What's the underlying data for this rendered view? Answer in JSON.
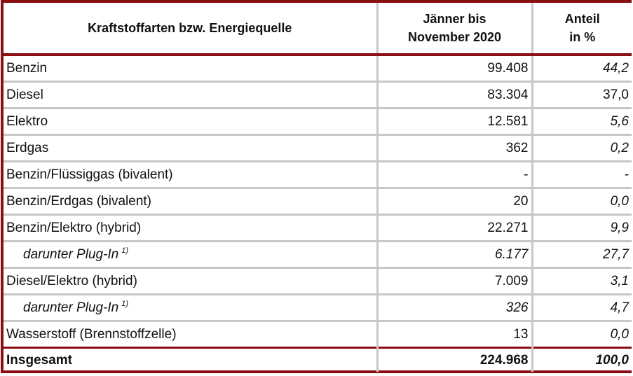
{
  "header": {
    "col1": "Kraftstoffarten bzw. Energiequelle",
    "col2_line1": "Jänner bis",
    "col2_line2": "November 2020",
    "col3_line1": "Anteil",
    "col3_line2": "in %"
  },
  "rows": [
    {
      "label": "Benzin",
      "value": "99.408",
      "share": "44,2"
    },
    {
      "label": "Diesel",
      "value": "83.304",
      "share": "37,0"
    },
    {
      "label": "Elektro",
      "value": "12.581",
      "share": "5,6"
    },
    {
      "label": "Erdgas",
      "value": "362",
      "share": "0,2"
    },
    {
      "label": "Benzin/Flüssiggas (bivalent)",
      "value": "-",
      "share": "-"
    },
    {
      "label": "Benzin/Erdgas (bivalent)",
      "value": "20",
      "share": "0,0"
    },
    {
      "label": "Benzin/Elektro (hybrid)",
      "value": "22.271",
      "share": "9,9"
    },
    {
      "label": "darunter Plug-In",
      "footnote": "1)",
      "value": "6.177",
      "share": "27,7"
    },
    {
      "label": "Diesel/Elektro (hybrid)",
      "value": "7.009",
      "share": "3,1"
    },
    {
      "label": "darunter Plug-In",
      "footnote": "1)",
      "value": "326",
      "share": "4,7"
    },
    {
      "label": "Wasserstoff (Brennstoffzelle)",
      "value": "13",
      "share": "0,0"
    }
  ],
  "total": {
    "label": "Insgesamt",
    "value": "224.968",
    "share": "100,0"
  },
  "colors": {
    "accent": "#8b0e12",
    "grid": "#c7c7c7"
  }
}
